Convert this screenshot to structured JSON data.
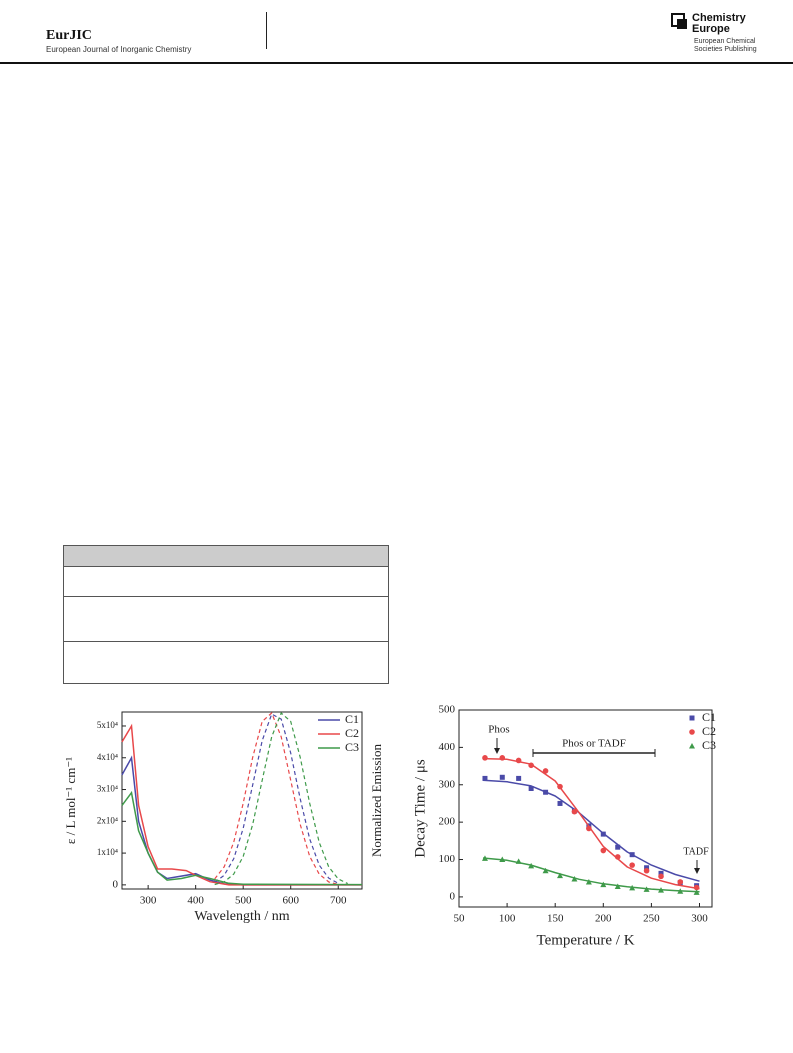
{
  "header": {
    "journal": "EurJIC",
    "journal_full": "European Journal of Inorganic Chemistry",
    "publisher_line1": "Chemistry",
    "publisher_line2": "Europe",
    "publisher_sub1": "European Chemical",
    "publisher_sub2": "Societies Publishing"
  },
  "charts": [
    {
      "chart_data": {
        "type": "line",
        "x_label": "Wavelength / nm",
        "y_label": "ε / L mol⁻¹ cm⁻¹",
        "y2_label": "Normalized Emission",
        "xlim": [
          245,
          750
        ],
        "xticks": [
          300,
          400,
          500,
          600,
          700
        ],
        "ylim": [
          -1300,
          54400
        ],
        "yticks": [
          0,
          {
            "value": 10000,
            "label": "1x10⁴"
          },
          {
            "value": 20000,
            "label": "2x10⁴"
          },
          {
            "value": 30000,
            "label": "3x10⁴"
          },
          {
            "value": 40000,
            "label": "4x10⁴"
          },
          {
            "value": 50000,
            "label": "5x10⁴"
          }
        ],
        "y2lim": [
          -0.02,
          1
        ],
        "legend": "upper right",
        "series": [
          {
            "name": "C1",
            "color": "#4a4aa8",
            "x": [
              245,
              265,
              280,
              300,
              320,
              340,
              360,
              400,
              430,
              460,
              500,
              600,
              750
            ],
            "values": [
              34600,
              40000,
              20000,
              10000,
              4000,
              2000,
              2500,
              3500,
              1500,
              300,
              0,
              0,
              0
            ],
            "emission": {
              "x": [
                440,
                460,
                480,
                500,
                520,
                540,
                560,
                580,
                600,
                620,
                640,
                660,
                680,
                700
              ],
              "values": [
                0.019,
                0.059,
                0.154,
                0.33,
                0.58,
                0.835,
                0.988,
                0.959,
                0.764,
                0.5,
                0.268,
                0.118,
                0.043,
                0.013
              ]
            }
          },
          {
            "name": "C2",
            "color": "#e8484a",
            "x": [
              245,
              265,
              280,
              300,
              320,
              350,
              380,
              400,
              430,
              470,
              750
            ],
            "values": [
              45000,
              50000,
              25000,
              12000,
              5000,
              5000,
              4500,
              3000,
              1000,
              0,
              0
            ],
            "emission": {
              "x": [
                440,
                460,
                480,
                500,
                520,
                540,
                560,
                580,
                600,
                620,
                640,
                660,
                680,
                700
              ],
              "values": [
                0.038,
                0.108,
                0.249,
                0.474,
                0.739,
                0.946,
                0.994,
                0.857,
                0.607,
                0.352,
                0.168,
                0.066,
                0.021,
                0.006
              ]
            }
          },
          {
            "name": "C3",
            "color": "#3f9a4a",
            "x": [
              245,
              265,
              280,
              300,
              320,
              340,
              370,
              400,
              430,
              470,
              500,
              750
            ],
            "values": [
              25000,
              29000,
              17000,
              10000,
              4000,
              1500,
              2000,
              3000,
              2000,
              500,
              200,
              100
            ],
            "emission": {
              "x": [
                440,
                460,
                480,
                500,
                520,
                540,
                560,
                580,
                600,
                620,
                640,
                660,
                680,
                700,
                720
              ],
              "values": [
                0.006,
                0.021,
                0.066,
                0.168,
                0.352,
                0.607,
                0.857,
                0.994,
                0.946,
                0.739,
                0.474,
                0.249,
                0.108,
                0.038,
                0.011
              ]
            }
          }
        ]
      }
    },
    {
      "chart_data": {
        "type": "scatter",
        "x_label": "Temperature / K",
        "y_label": "Decay Time / μs",
        "xlim": [
          50,
          313
        ],
        "xticks": [
          50,
          100,
          150,
          200,
          250,
          300
        ],
        "ylim": [
          -27,
          500
        ],
        "yticks": [
          0,
          100,
          200,
          300,
          400,
          500
        ],
        "legend": "upper right",
        "annotations": [
          "Phos",
          "Phos or TADF",
          "TADF"
        ],
        "series": [
          {
            "name": "C1",
            "color": "#4a4aa8",
            "marker": "square",
            "x": [
              77,
              95,
              112,
              125,
              140,
              155,
              170,
              185,
              200,
              215,
              230,
              245,
              260,
              280,
              297
            ],
            "values": [
              317,
              320,
              317,
              290,
              280,
              250,
              230,
              190,
              168,
              133,
              113,
              78,
              63,
              38,
              30
            ],
            "fit_x": [
              75,
              100,
              125,
              150,
              175,
              200,
              225,
              250,
              275,
              300
            ],
            "fit_values": [
              312,
              308,
              297,
              270,
              225,
              170,
              120,
              85,
              60,
              42
            ]
          },
          {
            "name": "C2",
            "color": "#e8484a",
            "marker": "circle",
            "x": [
              77,
              95,
              112,
              125,
              140,
              155,
              170,
              185,
              200,
              215,
              230,
              245,
              260,
              280,
              297
            ],
            "values": [
              372,
              372,
              365,
              352,
              337,
              295,
              228,
              183,
              124,
              107,
              85,
              70,
              55,
              40,
              25
            ],
            "fit_x": [
              75,
              100,
              125,
              150,
              175,
              200,
              225,
              250,
              275,
              300
            ],
            "fit_values": [
              370,
              368,
              355,
              310,
              225,
              135,
              80,
              50,
              33,
              22
            ]
          },
          {
            "name": "C3",
            "color": "#3f9a4a",
            "marker": "triangle",
            "x": [
              77,
              95,
              112,
              125,
              140,
              155,
              170,
              185,
              200,
              215,
              230,
              245,
              260,
              280,
              297
            ],
            "values": [
              103,
              100,
              95,
              83,
              70,
              57,
              48,
              40,
              33,
              28,
              24,
              20,
              18,
              15,
              12
            ],
            "fit_x": [
              75,
              100,
              125,
              150,
              175,
              200,
              225,
              250,
              275,
              300
            ],
            "fit_values": [
              104,
              98,
              85,
              65,
              47,
              35,
              27,
              21,
              17,
              14
            ]
          }
        ]
      }
    }
  ]
}
